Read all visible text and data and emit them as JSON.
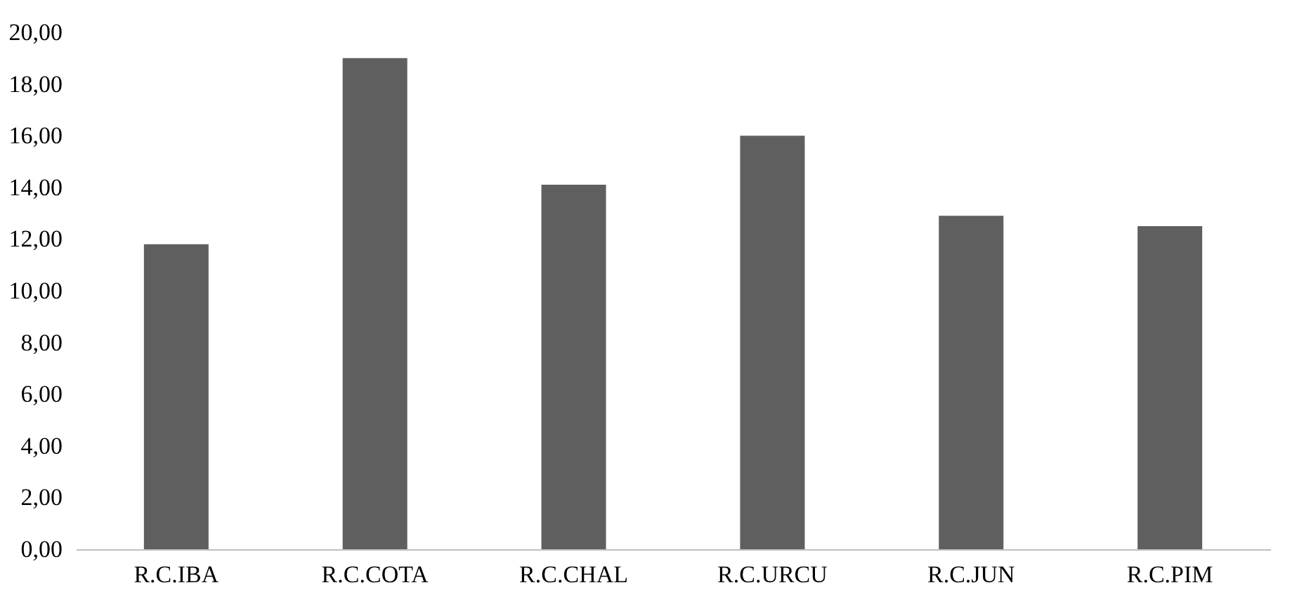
{
  "chart_data": {
    "type": "bar",
    "categories": [
      "R.C.IBA",
      "R.C.COTA",
      "R.C.CHAL",
      "R.C.URCU",
      "R.C.JUN",
      "R.C.PIM"
    ],
    "values": [
      11.8,
      19.0,
      14.1,
      16.0,
      12.9,
      12.5
    ],
    "color": "#5f5f5f",
    "ylim": [
      0,
      20
    ],
    "yticks": [
      {
        "value": 0,
        "label": "0,00"
      },
      {
        "value": 2,
        "label": "2,00"
      },
      {
        "value": 4,
        "label": "4,00"
      },
      {
        "value": 6,
        "label": "6,00"
      },
      {
        "value": 8,
        "label": "8,00"
      },
      {
        "value": 10,
        "label": "10,00"
      },
      {
        "value": 12,
        "label": "12,00"
      },
      {
        "value": 14,
        "label": "14,00"
      },
      {
        "value": 16,
        "label": "16,00"
      },
      {
        "value": 18,
        "label": "18,00"
      },
      {
        "value": 20,
        "label": "20,00"
      }
    ],
    "grid": false
  }
}
